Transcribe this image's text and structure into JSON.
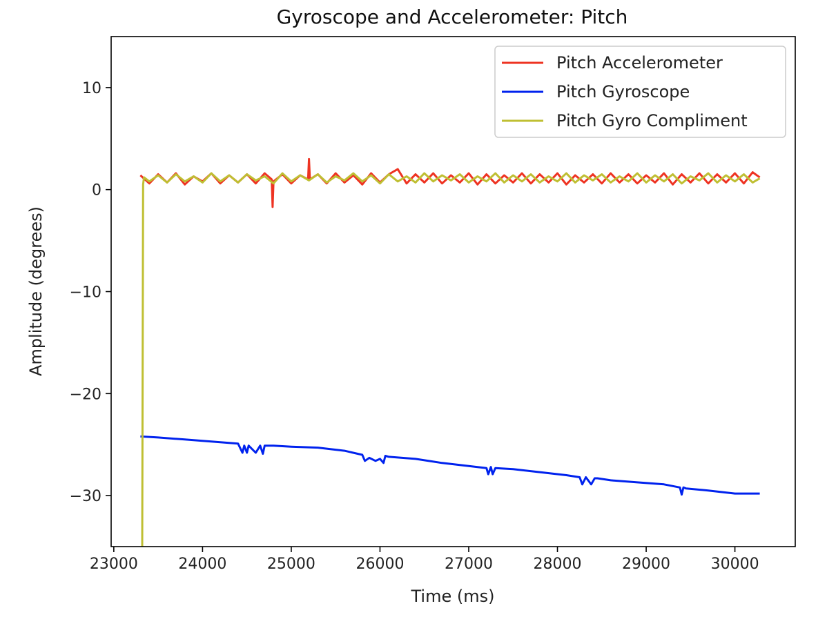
{
  "chart_data": {
    "type": "line",
    "title": "Gyroscope and Accelerometer: Pitch",
    "xlabel": "Time (ms)",
    "ylabel": "Amplitude (degrees)",
    "xlim": [
      22970,
      30680
    ],
    "ylim": [
      -35,
      15
    ],
    "xticks": [
      23000,
      24000,
      25000,
      26000,
      27000,
      28000,
      29000,
      30000
    ],
    "yticks": [
      10,
      0,
      -10,
      -20,
      -30
    ],
    "ytick_labels": [
      "10",
      "0",
      "−10",
      "−20",
      "−30"
    ],
    "grid": false,
    "legend_position": "top-right",
    "series": [
      {
        "name": "Pitch Accelerometer",
        "color": "#ee3322",
        "x": [
          23300,
          23400,
          23500,
          23600,
          23700,
          23800,
          23900,
          24000,
          24100,
          24200,
          24300,
          24400,
          24500,
          24600,
          24700,
          24780,
          24790,
          24800,
          24900,
          25000,
          25100,
          25190,
          25200,
          25210,
          25300,
          25400,
          25500,
          25600,
          25700,
          25800,
          25900,
          26000,
          26100,
          26200,
          26300,
          26400,
          26500,
          26600,
          26700,
          26800,
          26900,
          27000,
          27100,
          27200,
          27300,
          27400,
          27500,
          27600,
          27700,
          27800,
          27900,
          28000,
          28100,
          28200,
          28300,
          28400,
          28500,
          28600,
          28700,
          28800,
          28900,
          29000,
          29100,
          29200,
          29300,
          29400,
          29500,
          29600,
          29700,
          29800,
          29900,
          30000,
          30100,
          30200,
          30280
        ],
        "y": [
          1.4,
          0.6,
          1.5,
          0.7,
          1.6,
          0.5,
          1.3,
          0.8,
          1.6,
          0.6,
          1.4,
          0.7,
          1.5,
          0.6,
          1.6,
          1.0,
          -1.7,
          0.8,
          1.5,
          0.6,
          1.4,
          1.0,
          3.0,
          1.0,
          1.5,
          0.6,
          1.6,
          0.7,
          1.4,
          0.5,
          1.6,
          0.7,
          1.5,
          2.0,
          0.6,
          1.5,
          0.7,
          1.6,
          0.6,
          1.4,
          0.7,
          1.6,
          0.5,
          1.5,
          0.6,
          1.4,
          0.7,
          1.6,
          0.6,
          1.5,
          0.7,
          1.6,
          0.5,
          1.4,
          0.7,
          1.5,
          0.6,
          1.6,
          0.7,
          1.5,
          0.6,
          1.4,
          0.7,
          1.6,
          0.5,
          1.5,
          0.7,
          1.6,
          0.6,
          1.5,
          0.7,
          1.6,
          0.6,
          1.7,
          1.2
        ]
      },
      {
        "name": "Pitch Gyroscope",
        "color": "#0022ee",
        "x": [
          23300,
          23500,
          23800,
          24100,
          24400,
          24450,
          24470,
          24500,
          24520,
          24600,
          24650,
          24680,
          24700,
          24800,
          25000,
          25300,
          25600,
          25800,
          25830,
          25880,
          25950,
          26000,
          26040,
          26060,
          26100,
          26400,
          26700,
          27000,
          27200,
          27220,
          27250,
          27270,
          27300,
          27500,
          27800,
          28100,
          28250,
          28280,
          28320,
          28380,
          28420,
          28450,
          28600,
          28900,
          29200,
          29380,
          29400,
          29420,
          29450,
          29700,
          30000,
          30280
        ],
        "y": [
          -24.2,
          -24.3,
          -24.5,
          -24.7,
          -24.9,
          -25.8,
          -25.1,
          -25.8,
          -25.1,
          -25.8,
          -25.1,
          -25.9,
          -25.1,
          -25.1,
          -25.2,
          -25.3,
          -25.6,
          -26.0,
          -26.6,
          -26.3,
          -26.6,
          -26.4,
          -26.8,
          -26.1,
          -26.2,
          -26.4,
          -26.8,
          -27.1,
          -27.3,
          -27.9,
          -27.2,
          -27.9,
          -27.3,
          -27.4,
          -27.7,
          -28.0,
          -28.2,
          -28.9,
          -28.2,
          -28.9,
          -28.3,
          -28.3,
          -28.5,
          -28.7,
          -28.9,
          -29.2,
          -29.9,
          -29.2,
          -29.3,
          -29.5,
          -29.8,
          -29.8
        ]
      },
      {
        "name": "Pitch Gyro Compliment",
        "color": "#bfbf33",
        "x": [
          23320,
          23330,
          23340,
          23400,
          23500,
          23600,
          23700,
          23800,
          23900,
          24000,
          24100,
          24200,
          24300,
          24400,
          24500,
          24600,
          24700,
          24800,
          24900,
          25000,
          25100,
          25200,
          25300,
          25400,
          25500,
          25600,
          25700,
          25800,
          25900,
          26000,
          26100,
          26200,
          26300,
          26400,
          26500,
          26600,
          26700,
          26800,
          26900,
          27000,
          27100,
          27200,
          27300,
          27400,
          27500,
          27600,
          27700,
          27800,
          27900,
          28000,
          28100,
          28200,
          28300,
          28400,
          28500,
          28600,
          28700,
          28800,
          28900,
          29000,
          29100,
          29200,
          29300,
          29400,
          29500,
          29600,
          29700,
          29800,
          29900,
          30000,
          30100,
          30200,
          30280
        ],
        "y": [
          -35,
          0.5,
          1.2,
          0.8,
          1.4,
          0.7,
          1.5,
          0.8,
          1.3,
          0.7,
          1.6,
          0.8,
          1.4,
          0.7,
          1.5,
          0.9,
          1.3,
          0.6,
          1.6,
          0.8,
          1.4,
          0.9,
          1.5,
          0.7,
          1.3,
          0.9,
          1.6,
          0.8,
          1.4,
          0.6,
          1.5,
          0.8,
          1.3,
          0.7,
          1.6,
          0.8,
          1.4,
          0.9,
          1.5,
          0.7,
          1.3,
          0.8,
          1.6,
          0.7,
          1.4,
          0.8,
          1.5,
          0.7,
          1.3,
          0.8,
          1.6,
          0.7,
          1.4,
          0.9,
          1.5,
          0.7,
          1.3,
          0.8,
          1.6,
          0.7,
          1.4,
          0.8,
          1.5,
          0.6,
          1.3,
          0.9,
          1.6,
          0.7,
          1.4,
          0.8,
          1.5,
          0.7,
          1.1
        ]
      }
    ]
  }
}
